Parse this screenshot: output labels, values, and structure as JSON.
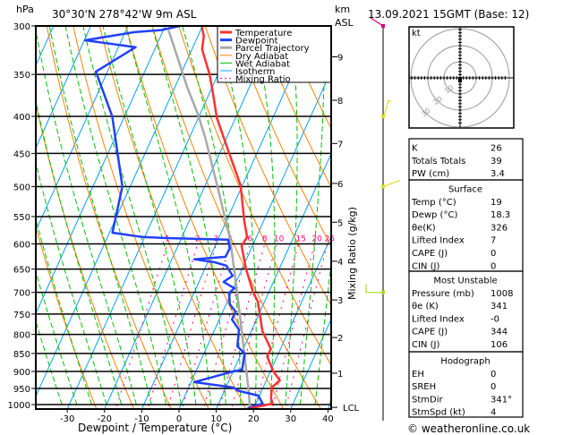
{
  "header": {
    "pressure_unit": "hPa",
    "location": "30°30'N  278°42'W  9m  ASL",
    "km_unit": "km",
    "km_unit2": "ASL",
    "datetime": "13.09.2021  15GMT  (Base: 12)"
  },
  "legend": [
    {
      "label": "Temperature",
      "color": "#ff3030",
      "style": "solid"
    },
    {
      "label": "Dewpoint",
      "color": "#2040ff",
      "style": "solid"
    },
    {
      "label": "Parcel Trajectory",
      "color": "#a8a8a8",
      "style": "solid"
    },
    {
      "label": "Dry Adiabat",
      "color": "#ff8000",
      "style": "thin"
    },
    {
      "label": "Wet Adiabat",
      "color": "#00c000",
      "style": "thin"
    },
    {
      "label": "Isotherm",
      "color": "#00a0ff",
      "style": "thin"
    },
    {
      "label": "Mixing Ratio",
      "color": "#ff0080",
      "style": "dotted"
    }
  ],
  "chart_data": {
    "type": "line",
    "title": "",
    "subtype": "skew-T log-p",
    "xlabel": "Dewpoint / Temperature (°C)",
    "ylabel": "hPa",
    "y2label": "Mixing Ratio (g/kg)",
    "xlim": [
      -38.5,
      40.6
    ],
    "ylim": [
      1014,
      300
    ],
    "y_scale": "log",
    "x_ticks": [
      "-30",
      "-20",
      "-10",
      "0",
      "10",
      "20",
      "30",
      "40"
    ],
    "pressure_levels": [
      "300",
      "350",
      "400",
      "450",
      "500",
      "550",
      "600",
      "650",
      "700",
      "750",
      "800",
      "850",
      "900",
      "950",
      "1000"
    ],
    "mixing_ratio_labels": [
      "1",
      "2",
      "3",
      "4",
      "6",
      "8",
      "10",
      "15",
      "20",
      "25"
    ],
    "height_axis": [
      {
        "label": "9",
        "p": 331
      },
      {
        "label": "8",
        "p": 380
      },
      {
        "label": "7",
        "p": 436
      },
      {
        "label": "6",
        "p": 495
      },
      {
        "label": "5",
        "p": 560
      },
      {
        "label": "4",
        "p": 634
      },
      {
        "label": "3",
        "p": 717
      },
      {
        "label": "2",
        "p": 808
      },
      {
        "label": "1",
        "p": 905
      },
      {
        "label": "LCL",
        "p": 1009
      }
    ],
    "series": [
      {
        "name": "Temperature",
        "color": "#ff3030",
        "points": [
          [
            1012,
            19
          ],
          [
            997,
            24.5
          ],
          [
            980,
            23.4
          ],
          [
            947,
            22.3
          ],
          [
            926,
            23.6
          ],
          [
            900,
            20.8
          ],
          [
            858,
            17.3
          ],
          [
            838,
            17.4
          ],
          [
            792,
            13.0
          ],
          [
            721,
            8.2
          ],
          [
            701,
            5.9
          ],
          [
            649,
            1.0
          ],
          [
            604,
            -2.9
          ],
          [
            587,
            -2.5
          ],
          [
            558,
            -5.2
          ],
          [
            498,
            -10.5
          ],
          [
            452,
            -17.1
          ],
          [
            402,
            -25.0
          ],
          [
            367,
            -29.7
          ],
          [
            349,
            -32.4
          ],
          [
            334,
            -35.2
          ],
          [
            323,
            -37.3
          ],
          [
            310,
            -38.4
          ],
          [
            300,
            -40.2
          ]
        ]
      },
      {
        "name": "Dewpoint",
        "color": "#2040ff",
        "points": [
          [
            1012,
            18.3
          ],
          [
            997,
            21.8
          ],
          [
            972,
            19.7
          ],
          [
            958,
            14.0
          ],
          [
            947,
            11.9
          ],
          [
            931,
            0.8
          ],
          [
            900,
            10.0
          ],
          [
            895,
            12.2
          ],
          [
            850,
            10.9
          ],
          [
            831,
            8.1
          ],
          [
            788,
            6.5
          ],
          [
            763,
            3.4
          ],
          [
            744,
            3.4
          ],
          [
            727,
            1.0
          ],
          [
            701,
            -0.6
          ],
          [
            691,
            0.3
          ],
          [
            677,
            -3.4
          ],
          [
            664,
            -1.7
          ],
          [
            643,
            -4.6
          ],
          [
            636,
            -8.2
          ],
          [
            630,
            -14.0
          ],
          [
            625,
            -5.9
          ],
          [
            608,
            -5.8
          ],
          [
            592,
            -7.3
          ],
          [
            589,
            -24.0
          ],
          [
            587,
            -30.6
          ],
          [
            579,
            -39.2
          ],
          [
            500,
            -42.1
          ],
          [
            400,
            -53.3
          ],
          [
            347,
            -63.1
          ],
          [
            321,
            -55.4
          ],
          [
            314,
            -69.8
          ],
          [
            306,
            -57.5
          ],
          [
            304,
            -50.6
          ],
          [
            300,
            -46.1
          ]
        ]
      },
      {
        "name": "Parcel Trajectory",
        "color": "#a8a8a8",
        "points": [
          [
            1012,
            19
          ],
          [
            947,
            16.0
          ],
          [
            855,
            11.1
          ],
          [
            754,
            5.1
          ],
          [
            673,
            -0.4
          ],
          [
            590,
            -6.9
          ],
          [
            498,
            -16.8
          ],
          [
            427,
            -25.9
          ],
          [
            397,
            -30.6
          ],
          [
            364,
            -36.8
          ],
          [
            304,
            -48.6
          ]
        ]
      }
    ]
  },
  "wind_barbs": [
    {
      "p": 300,
      "color": "#d0007a"
    },
    {
      "p": 400,
      "color": "#e0e020"
    },
    {
      "p": 500,
      "color": "#e0e020"
    },
    {
      "p": 700,
      "color": "#a0e020"
    }
  ],
  "hodograph": {
    "unit": "kt",
    "ring_labels": [
      "10",
      "20",
      "30"
    ]
  },
  "indices": {
    "rows": [
      {
        "label": "K",
        "value": "26"
      },
      {
        "label": "Totals Totals",
        "value": "39"
      },
      {
        "label": "PW (cm)",
        "value": "3.4"
      }
    ]
  },
  "surface": {
    "title": "Surface",
    "rows": [
      {
        "label": "Temp (°C)",
        "value": "19"
      },
      {
        "label": "Dewp (°C)",
        "value": "18.3"
      },
      {
        "label": "θe(K)",
        "value": "326"
      },
      {
        "label": "Lifted Index",
        "value": "7"
      },
      {
        "label": "CAPE (J)",
        "value": "0"
      },
      {
        "label": "CIN (J)",
        "value": "0"
      }
    ]
  },
  "most_unstable": {
    "title": "Most Unstable",
    "rows": [
      {
        "label": "Pressure (mb)",
        "value": "1008"
      },
      {
        "label": "θe (K)",
        "value": "341"
      },
      {
        "label": "Lifted Index",
        "value": "-0"
      },
      {
        "label": "CAPE (J)",
        "value": "344"
      },
      {
        "label": "CIN (J)",
        "value": "106"
      }
    ]
  },
  "hodograph_table": {
    "title": "Hodograph",
    "rows": [
      {
        "label": "EH",
        "value": "0"
      },
      {
        "label": "SREH",
        "value": "0"
      },
      {
        "label": "StmDir",
        "value": "341°"
      },
      {
        "label": "StmSpd (kt)",
        "value": "4"
      }
    ]
  },
  "copyright": "© weatheronline.co.uk"
}
